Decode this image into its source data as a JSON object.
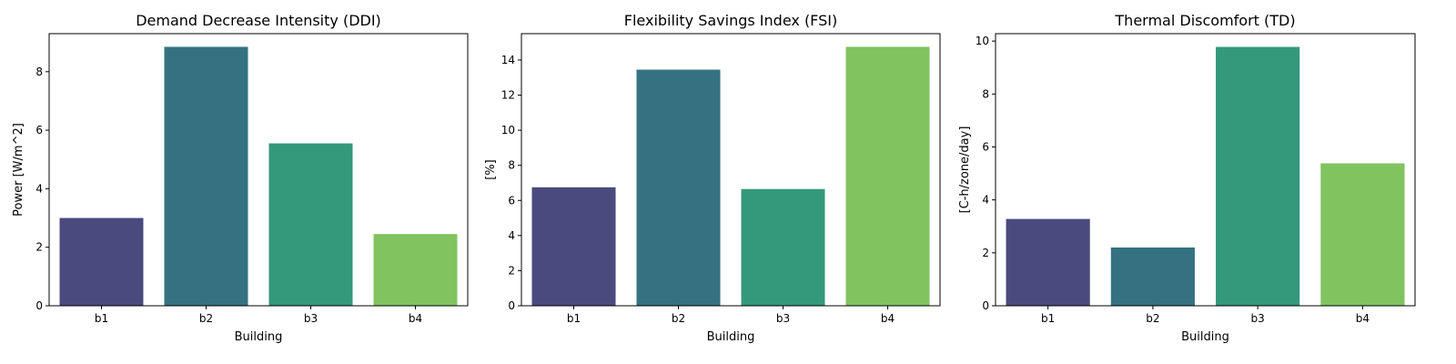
{
  "chart_data": [
    {
      "type": "bar",
      "title": "Demand Decrease Intensity (DDI)",
      "xlabel": "Building",
      "ylabel": "Power [W/m^2]",
      "categories": [
        "b1",
        "b2",
        "b3",
        "b4"
      ],
      "values": [
        3.0,
        8.85,
        5.55,
        2.45
      ],
      "ylim": [
        0,
        9.3
      ],
      "yticks": [
        0,
        2,
        4,
        6,
        8
      ],
      "colors": [
        "#4a4a7e",
        "#357281",
        "#34987b",
        "#80c35f"
      ],
      "grid": false
    },
    {
      "type": "bar",
      "title": "Flexibility Savings Index (FSI)",
      "xlabel": "Building",
      "ylabel": "[%]",
      "categories": [
        "b1",
        "b2",
        "b3",
        "b4"
      ],
      "values": [
        6.75,
        13.45,
        6.65,
        14.75
      ],
      "ylim": [
        0,
        15.5
      ],
      "yticks": [
        0,
        2,
        4,
        6,
        8,
        10,
        12,
        14
      ],
      "colors": [
        "#4a4a7e",
        "#357281",
        "#34987b",
        "#80c35f"
      ],
      "grid": false
    },
    {
      "type": "bar",
      "title": "Thermal Discomfort (TD)",
      "xlabel": "Building",
      "ylabel": "[C-h/zone/day]",
      "categories": [
        "b1",
        "b2",
        "b3",
        "b4"
      ],
      "values": [
        3.28,
        2.2,
        9.78,
        5.38
      ],
      "ylim": [
        0,
        10.28
      ],
      "yticks": [
        0,
        2,
        4,
        6,
        8,
        10
      ],
      "colors": [
        "#4a4a7e",
        "#357281",
        "#34987b",
        "#80c35f"
      ],
      "grid": false
    }
  ]
}
